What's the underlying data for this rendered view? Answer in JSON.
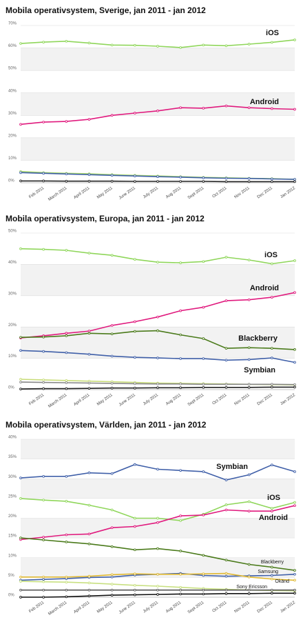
{
  "chart_data": [
    {
      "type": "line",
      "title": "Mobila operativsystem, Sverige, jan 2011 - jan 2012",
      "categories": [
        null,
        "Feb 2011",
        "March 2011",
        "April 2011",
        "May 2011",
        "June 2011",
        "July 2011",
        "Aug 2011",
        "Sept 2011",
        "Oct 2011",
        "Nov 2011",
        "Dec 2011",
        "Jan 2012"
      ],
      "ylim": [
        0,
        70
      ],
      "yticks": [
        {
          "value": 0,
          "label": "0%"
        },
        {
          "value": 10,
          "label": "10%"
        },
        {
          "value": 20,
          "label": "20%"
        },
        {
          "value": 30,
          "label": "30%"
        },
        {
          "value": 40,
          "label": "40%"
        },
        {
          "value": 50,
          "label": "50%"
        },
        {
          "value": 60,
          "label": "60%"
        },
        {
          "value": 70,
          "label": "70%"
        }
      ],
      "grid": true,
      "series": [
        {
          "name": "iOS",
          "color": "#8fd65a",
          "values": [
            62,
            62.6,
            63,
            62.2,
            61.3,
            61.2,
            60.8,
            60.2,
            61.3,
            61,
            61.7,
            62.5,
            63.6
          ]
        },
        {
          "name": "Android",
          "color": "#e0197d",
          "values": [
            26,
            27,
            27.3,
            28.2,
            30,
            31,
            32,
            33.4,
            33.2,
            34.2,
            33.4,
            33,
            32.7
          ]
        },
        {
          "color": "#a8d86a",
          "values": [
            5,
            4.5,
            4.2,
            4,
            3.6,
            3.3,
            3,
            2.7,
            2.4,
            2.2,
            2,
            1.8,
            1.5
          ]
        },
        {
          "color": "#3f5fa8",
          "values": [
            4.5,
            4.2,
            3.9,
            3.6,
            3.3,
            3,
            2.7,
            2.5,
            2.2,
            2,
            1.9,
            1.7,
            1.5
          ]
        },
        {
          "color": "#222222",
          "values": [
            0.8,
            0.8,
            0.7,
            0.7,
            0.7,
            0.6,
            0.6,
            0.6,
            0.6,
            0.5,
            0.5,
            0.5,
            0.5
          ]
        }
      ]
    },
    {
      "type": "line",
      "title": "Mobila operativsystem, Europa, jan 2011 - jan 2012",
      "categories": [
        null,
        "Feb 2011",
        "March 2011",
        "April 2011",
        "May 2011",
        "June 2011",
        "July 2011",
        "Aug 2011",
        "Sept 2011",
        "Oct 2011",
        "Nov 2011",
        "Dec 2011",
        "Jan 2012"
      ],
      "ylim": [
        0,
        50
      ],
      "yticks": [
        {
          "value": 0,
          "label": "0%"
        },
        {
          "value": 10,
          "label": "10%"
        },
        {
          "value": 20,
          "label": "20%"
        },
        {
          "value": 30,
          "label": "30%"
        },
        {
          "value": 40,
          "label": "40%"
        },
        {
          "value": 50,
          "label": "50%"
        }
      ],
      "grid": true,
      "series": [
        {
          "name": "iOS",
          "color": "#8fd65a",
          "values": [
            45,
            44.8,
            44.5,
            43.6,
            42.9,
            41.6,
            40.7,
            40.5,
            40.9,
            42.3,
            41.4,
            40.2,
            41.2
          ]
        },
        {
          "name": "Android",
          "color": "#e0197d",
          "values": [
            16.5,
            17.2,
            18,
            18.7,
            20.5,
            21.7,
            23.2,
            25.2,
            26.3,
            28.4,
            28.7,
            29.5,
            31
          ]
        },
        {
          "name": "Blackberry",
          "color": "#4a7a1a",
          "values": [
            16.7,
            16.8,
            17.2,
            18,
            17.8,
            18.6,
            18.8,
            17.5,
            16.3,
            13.2,
            13.4,
            13.2,
            12.8
          ]
        },
        {
          "name": "Symbian",
          "color": "#3f5fa8",
          "values": [
            12.5,
            12.2,
            11.8,
            11.3,
            10.7,
            10.3,
            10.1,
            9.9,
            9.9,
            9.4,
            9.6,
            10.1,
            8.7
          ]
        },
        {
          "color": "#c8dc78",
          "values": [
            3.3,
            3.1,
            2.9,
            2.7,
            2.5,
            2.3,
            2.1,
            2,
            1.9,
            1.8,
            1.7,
            1.6,
            1.5
          ]
        },
        {
          "color": "#888888",
          "values": [
            2.4,
            2.3,
            2.2,
            2.1,
            2,
            1.9,
            1.8,
            1.8,
            1.7,
            1.7,
            1.7,
            1.7,
            1.6
          ]
        },
        {
          "color": "#222222",
          "values": [
            0.2,
            0.3,
            0.3,
            0.4,
            0.5,
            0.5,
            0.6,
            0.6,
            0.7,
            0.7,
            0.7,
            0.8,
            0.8
          ]
        }
      ]
    },
    {
      "type": "line",
      "title": "Mobila operativsystem, Världen, jan 2011 - jan 2012",
      "categories": [
        null,
        "Feb 2011",
        "March 2011",
        "April 2011",
        "May 2011",
        "June 2011",
        "July 2011",
        "Aug 2011",
        "Sept 2011",
        "Oct 2011",
        "Nov 2011",
        "Dec 2011",
        "Jan 2012"
      ],
      "ylim": [
        0,
        40
      ],
      "yticks": [
        {
          "value": 0,
          "label": "0%"
        },
        {
          "value": 5,
          "label": "5%"
        },
        {
          "value": 10,
          "label": "10%"
        },
        {
          "value": 15,
          "label": "15%"
        },
        {
          "value": 20,
          "label": "20%"
        },
        {
          "value": 25,
          "label": "25%"
        },
        {
          "value": 30,
          "label": "30%"
        },
        {
          "value": 35,
          "label": "35%"
        },
        {
          "value": 40,
          "label": "40%"
        }
      ],
      "grid": true,
      "series": [
        {
          "name": "Symbian",
          "color": "#3f5fa8",
          "values": [
            30.2,
            30.6,
            30.6,
            31.5,
            31.3,
            33.6,
            32.4,
            32.1,
            31.8,
            29.7,
            31,
            33.5,
            31.8
          ]
        },
        {
          "name": "iOS",
          "color": "#8fd65a",
          "values": [
            25,
            24.6,
            24.3,
            23.3,
            22.1,
            20,
            20,
            19.4,
            21,
            23.4,
            24.2,
            22.5,
            24
          ]
        },
        {
          "name": "Android",
          "color": "#e0197d",
          "values": [
            14.6,
            15.2,
            15.8,
            16,
            17.6,
            17.9,
            18.9,
            20.6,
            20.8,
            22.1,
            21.8,
            21.8,
            23.2
          ]
        },
        {
          "name": "Blackberry",
          "color": "#4a7a1a",
          "values": [
            15,
            14.5,
            14,
            13.5,
            12.8,
            12,
            12.3,
            11.7,
            10.6,
            9.4,
            8.3,
            7.6,
            6.8
          ]
        },
        {
          "name": "Samsung",
          "color": "#3f5fa8",
          "values": [
            4.3,
            4.5,
            4.7,
            5,
            5.1,
            5.6,
            5.8,
            6,
            5.5,
            5.3,
            5.4,
            5.5,
            5.8
          ]
        },
        {
          "name": "Okänd",
          "color": "#e0b830",
          "values": [
            5.1,
            5.1,
            5.1,
            5.3,
            5.7,
            5.9,
            5.8,
            5.8,
            5.9,
            6,
            5.1,
            4.6,
            4.3
          ]
        },
        {
          "name": "Sony Ericsson",
          "color": "#c8e080",
          "values": [
            4,
            3.9,
            3.8,
            3.6,
            3.3,
            3,
            2.8,
            2.5,
            2.2,
            2,
            1.8,
            1.7,
            1.6
          ]
        },
        {
          "color": "#555555",
          "values": [
            1.8,
            1.8,
            1.8,
            1.8,
            1.8,
            1.8,
            1.8,
            1.8,
            1.8,
            1.8,
            1.8,
            1.8,
            1.8
          ]
        },
        {
          "color": "#111111",
          "values": [
            0,
            0,
            0.1,
            0.3,
            0.5,
            0.6,
            0.7,
            0.8,
            0.8,
            0.9,
            0.9,
            1,
            1
          ]
        }
      ]
    }
  ]
}
